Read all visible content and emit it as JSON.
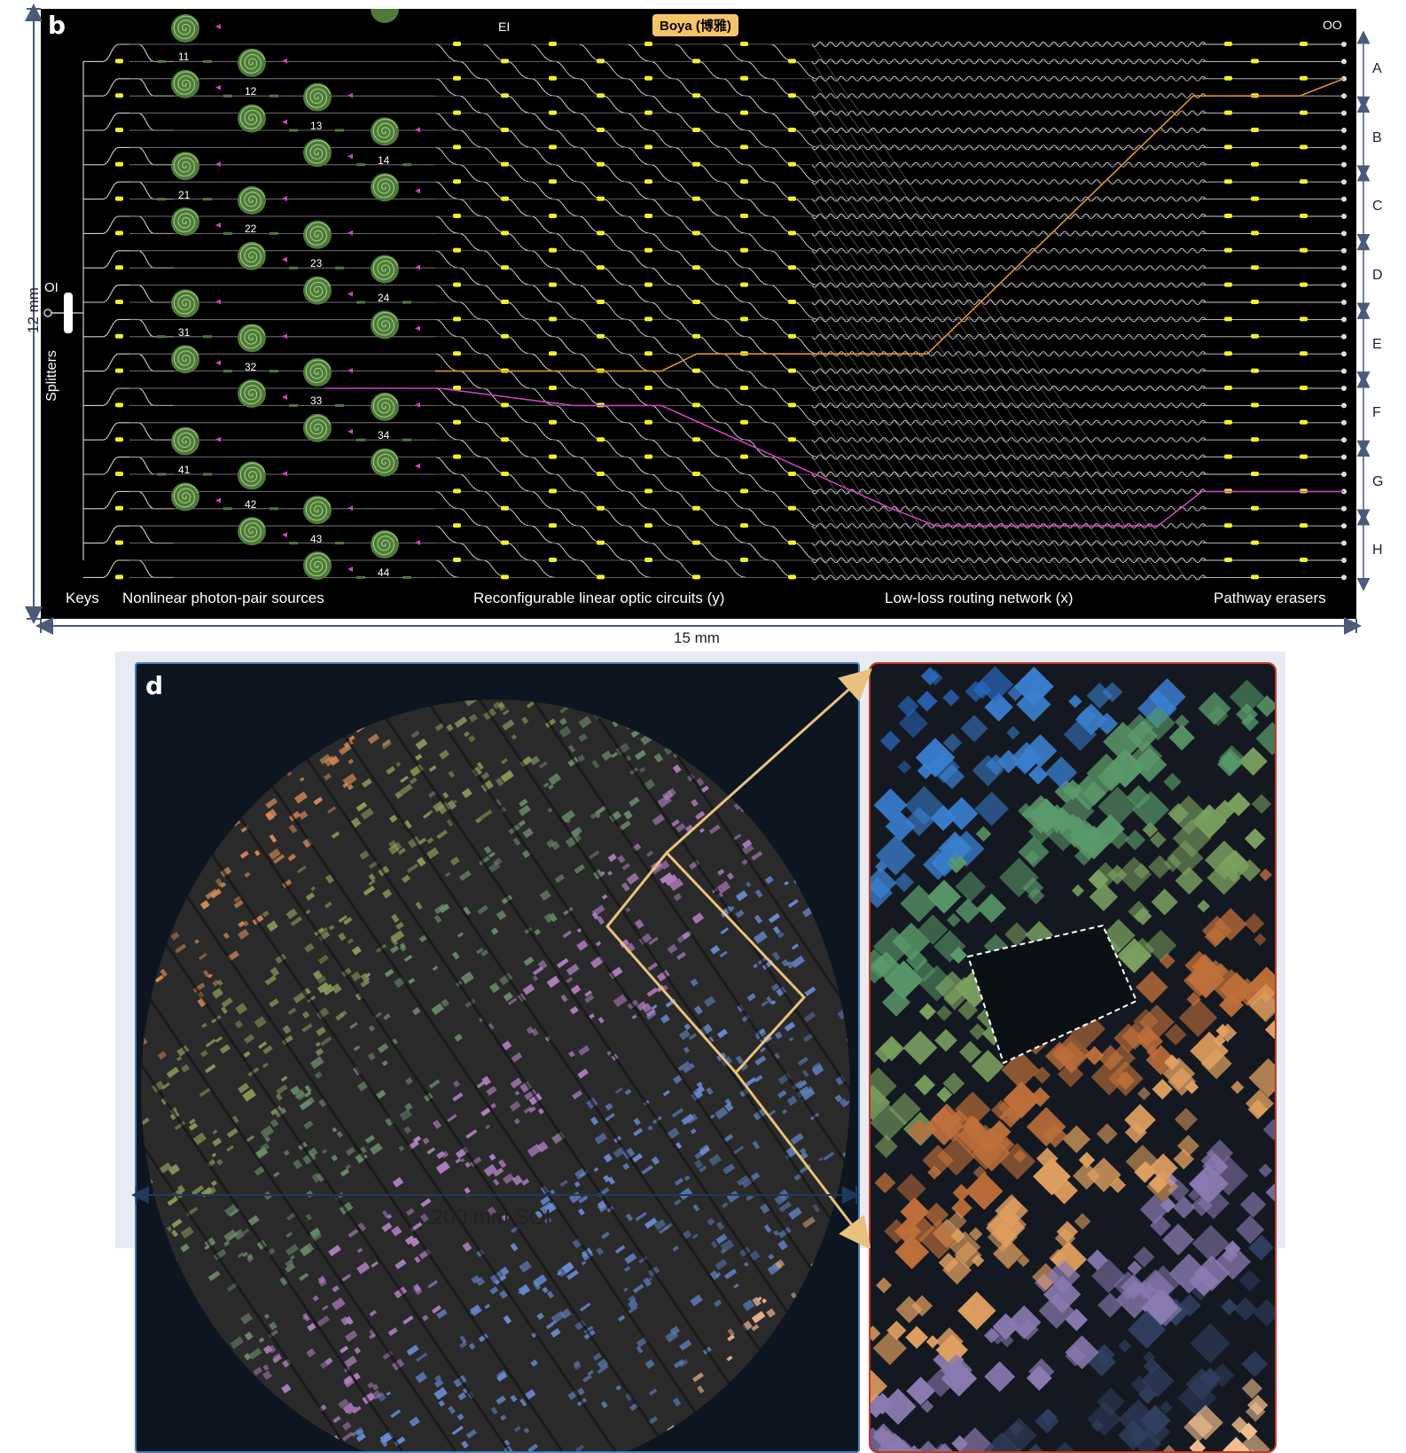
{
  "panel_b": {
    "letter": "b",
    "top_tag": "Boya (博雅)",
    "ei_label": "EI",
    "oo_label": "OO",
    "oi_label": "OI",
    "splitters_label": "Splitters",
    "source_ids": [
      "11",
      "12",
      "13",
      "14",
      "21",
      "22",
      "23",
      "24",
      "31",
      "32",
      "33",
      "34",
      "41",
      "42",
      "43",
      "44"
    ],
    "bottom_labels": {
      "keys": "Keys",
      "sources": "Nonlinear photon-pair sources",
      "linear": "Reconfigurable linear optic circuits (y)",
      "routing": "Low-loss routing network (x)",
      "erasers": "Pathway erasers"
    },
    "groups": [
      "A",
      "B",
      "C",
      "D",
      "E",
      "F",
      "G",
      "H"
    ],
    "dim_height": "12 mm",
    "dim_width": "15 mm",
    "colors": {
      "waveguide": "#cfcfcf",
      "heater": "#f2f224",
      "spiral": "#4f7a3a",
      "orange_path": "#e8902c",
      "magenta_path": "#d040c0"
    }
  },
  "panel_d": {
    "letter": "d",
    "scale_label": "200 mm SOI",
    "colors": {
      "wafer_border": "#4a80b5",
      "zoom_border": "#c33a2a",
      "callout": "#e8c27e"
    }
  }
}
